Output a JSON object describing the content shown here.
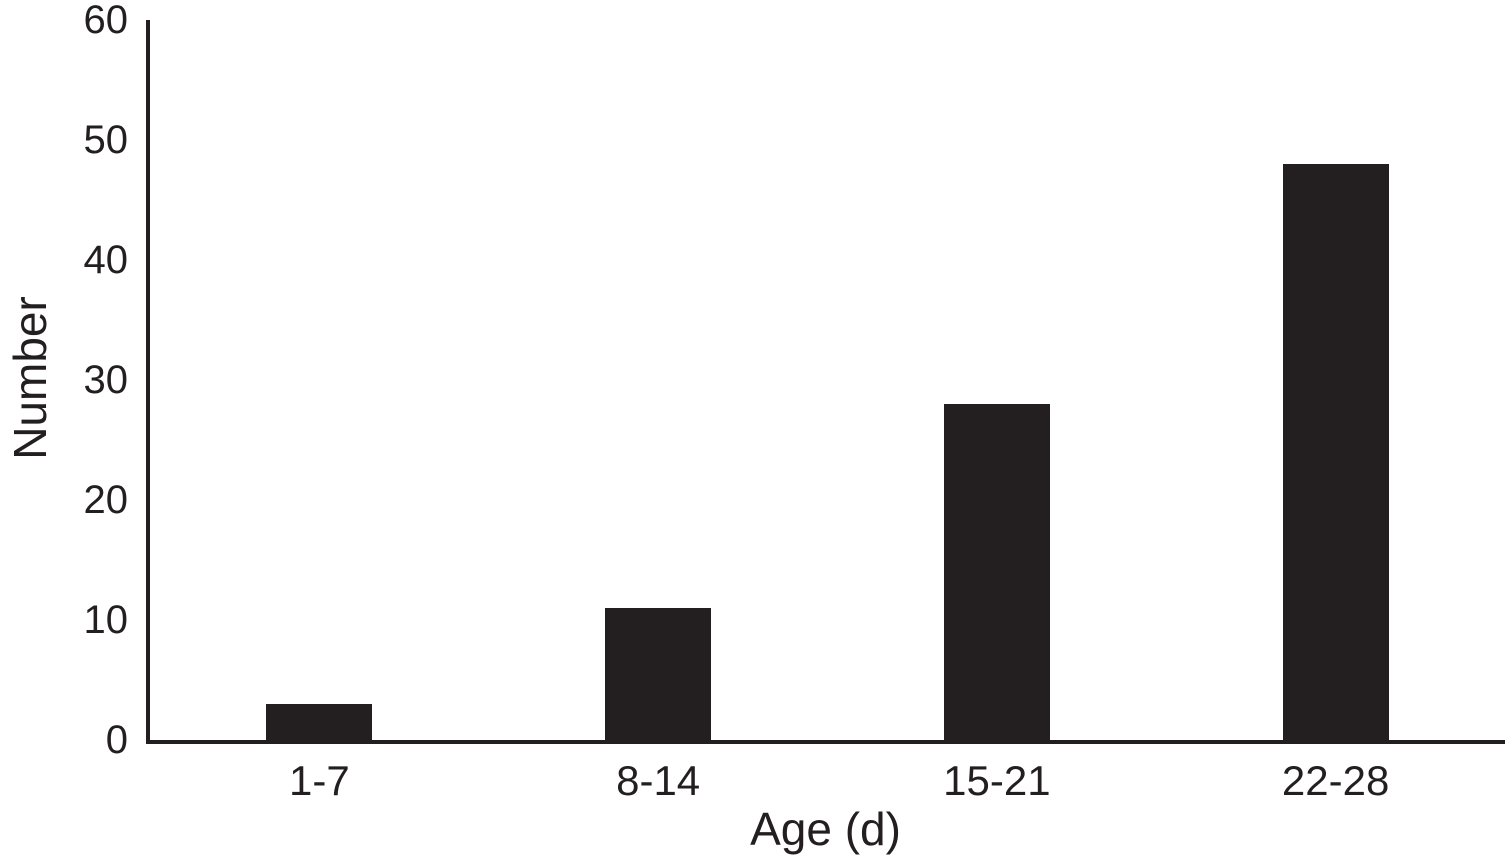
{
  "chart_data": {
    "type": "bar",
    "categories": [
      "1-7",
      "8-14",
      "15-21",
      "22-28"
    ],
    "values": [
      3,
      11,
      28,
      48
    ],
    "title": "",
    "xlabel": "Age (d)",
    "ylabel": "Number",
    "ylim": [
      0,
      60
    ],
    "yticks": [
      0,
      10,
      20,
      30,
      40,
      50,
      60
    ],
    "bar_color": "#231f20",
    "axis_color": "#231f20",
    "background_color": "#ffffff",
    "grid": false,
    "legend": false,
    "legend_entries": []
  }
}
